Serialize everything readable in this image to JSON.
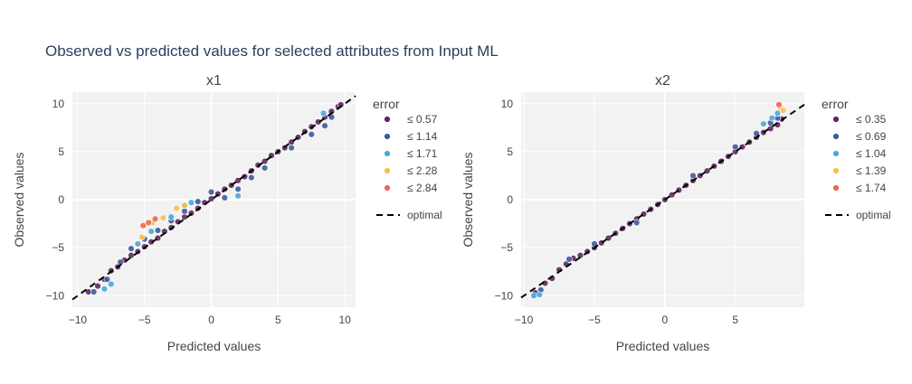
{
  "title": "Observed vs predicted values for selected attributes from Input ML",
  "colors": {
    "plot_bg": "#f2f2f2",
    "grid": "#ffffff",
    "text": "#444444",
    "title": "#2a3f5f",
    "point_outline": "#ffffff",
    "optimal_line": "#000000",
    "error_bins": [
      "#5c2a5c",
      "#3e5a9e",
      "#4aa9d8",
      "#f5c04a",
      "#f0654a"
    ]
  },
  "chart_data": [
    {
      "type": "scatter",
      "title": "x1",
      "xlabel": "Predicted values",
      "ylabel": "Observed values",
      "xlim": [
        -10.4,
        10.8
      ],
      "ylim": [
        -11.2,
        11.2
      ],
      "xticks": [
        -10,
        -5,
        0,
        5,
        10
      ],
      "yticks": [
        -10,
        -5,
        0,
        5,
        10
      ],
      "xtick_labels": [
        "−10",
        "−5",
        "0",
        "5",
        "10"
      ],
      "ytick_labels": [
        "−10",
        "−5",
        "0",
        "5",
        "10"
      ],
      "grid": true,
      "legend_title": "error",
      "legend_position": "right",
      "series": [
        {
          "name": "≤ 0.57",
          "color": "#5c2a5c",
          "points": [
            [
              -9.2,
              -9.6
            ],
            [
              -8.5,
              -9.0
            ],
            [
              -8.0,
              -8.3
            ],
            [
              -7.5,
              -7.4
            ],
            [
              -7.0,
              -7.0
            ],
            [
              -6.5,
              -6.3
            ],
            [
              -6.0,
              -5.8
            ],
            [
              -5.5,
              -5.4
            ],
            [
              -5.0,
              -4.9
            ],
            [
              -4.5,
              -4.4
            ],
            [
              -4.0,
              -4.0
            ],
            [
              -3.5,
              -3.3
            ],
            [
              -3.0,
              -2.9
            ],
            [
              -2.5,
              -2.3
            ],
            [
              -2.0,
              -1.8
            ],
            [
              -1.5,
              -1.4
            ],
            [
              -1.0,
              -0.9
            ],
            [
              -0.5,
              -0.3
            ],
            [
              0.0,
              0.1
            ],
            [
              0.5,
              0.6
            ],
            [
              1.0,
              1.1
            ],
            [
              1.5,
              1.5
            ],
            [
              2.0,
              2.0
            ],
            [
              2.5,
              2.4
            ],
            [
              3.0,
              3.0
            ],
            [
              3.5,
              3.6
            ],
            [
              4.0,
              4.0
            ],
            [
              4.5,
              4.6
            ],
            [
              5.0,
              5.0
            ],
            [
              5.5,
              5.4
            ],
            [
              6.0,
              6.0
            ],
            [
              6.5,
              6.5
            ],
            [
              7.0,
              7.1
            ],
            [
              7.5,
              7.6
            ],
            [
              8.0,
              8.1
            ],
            [
              8.5,
              8.6
            ],
            [
              9.0,
              9.2
            ],
            [
              9.5,
              9.7
            ],
            [
              9.7,
              9.9
            ]
          ]
        },
        {
          "name": "≤ 1.14",
          "color": "#3e5a9e",
          "points": [
            [
              -8.8,
              -9.6
            ],
            [
              -7.8,
              -8.3
            ],
            [
              -6.8,
              -6.5
            ],
            [
              -6.0,
              -5.1
            ],
            [
              -5.0,
              -4.1
            ],
            [
              -4.0,
              -3.2
            ],
            [
              -3.0,
              -2.2
            ],
            [
              -2.0,
              -1.2
            ],
            [
              -1.0,
              -0.2
            ],
            [
              0.0,
              0.8
            ],
            [
              1.0,
              0.2
            ],
            [
              2.0,
              1.1
            ],
            [
              3.0,
              2.3
            ],
            [
              4.0,
              3.3
            ],
            [
              6.0,
              5.4
            ],
            [
              7.5,
              6.8
            ],
            [
              8.5,
              7.7
            ],
            [
              9.0,
              8.6
            ]
          ]
        },
        {
          "name": "≤ 1.71",
          "color": "#4aa9d8",
          "points": [
            [
              -8.0,
              -9.3
            ],
            [
              -7.5,
              -8.8
            ],
            [
              -5.5,
              -4.6
            ],
            [
              -4.5,
              -3.3
            ],
            [
              -3.0,
              -1.8
            ],
            [
              -2.0,
              -0.6
            ],
            [
              -1.5,
              -0.3
            ],
            [
              2.0,
              0.4
            ],
            [
              8.4,
              9.0
            ]
          ]
        },
        {
          "name": "≤ 2.28",
          "color": "#f5c04a",
          "points": [
            [
              -5.2,
              -3.9
            ],
            [
              -4.4,
              -2.4
            ],
            [
              -3.6,
              -1.9
            ],
            [
              -2.6,
              -0.9
            ],
            [
              -2.0,
              -0.6
            ]
          ]
        },
        {
          "name": "≤ 2.84",
          "color": "#f0654a",
          "points": [
            [
              -5.1,
              -2.7
            ],
            [
              -4.7,
              -2.4
            ],
            [
              -4.2,
              -2.0
            ]
          ]
        }
      ],
      "optimal": {
        "name": "optimal",
        "x": [
          -10.4,
          10.8
        ],
        "y": [
          -10.4,
          10.8
        ]
      }
    },
    {
      "type": "scatter",
      "title": "x2",
      "xlabel": "Predicted values",
      "ylabel": "Observed values",
      "xlim": [
        -10.2,
        9.9
      ],
      "ylim": [
        -11.2,
        11.2
      ],
      "xticks": [
        -10,
        -5,
        0,
        5
      ],
      "yticks": [
        -10,
        -5,
        0,
        5,
        10
      ],
      "xtick_labels": [
        "−10",
        "−5",
        "0",
        "5"
      ],
      "ytick_labels": [
        "−10",
        "−5",
        "0",
        "5",
        "10"
      ],
      "grid": true,
      "legend_title": "error",
      "legend_position": "right",
      "series": [
        {
          "name": "≤ 0.35",
          "color": "#5c2a5c",
          "points": [
            [
              -9.2,
              -9.7
            ],
            [
              -8.5,
              -8.7
            ],
            [
              -8.0,
              -8.2
            ],
            [
              -7.5,
              -7.3
            ],
            [
              -7.0,
              -6.7
            ],
            [
              -6.5,
              -6.1
            ],
            [
              -6.0,
              -5.8
            ],
            [
              -5.5,
              -5.4
            ],
            [
              -5.0,
              -5.0
            ],
            [
              -4.5,
              -4.5
            ],
            [
              -4.0,
              -4.0
            ],
            [
              -3.5,
              -3.5
            ],
            [
              -3.0,
              -3.0
            ],
            [
              -2.5,
              -2.5
            ],
            [
              -2.0,
              -2.0
            ],
            [
              -1.5,
              -1.5
            ],
            [
              -1.0,
              -1.0
            ],
            [
              -0.5,
              -0.5
            ],
            [
              0.0,
              0.0
            ],
            [
              0.5,
              0.5
            ],
            [
              1.0,
              1.0
            ],
            [
              1.5,
              1.5
            ],
            [
              2.0,
              2.0
            ],
            [
              2.5,
              2.5
            ],
            [
              3.0,
              3.0
            ],
            [
              3.5,
              3.5
            ],
            [
              4.0,
              4.0
            ],
            [
              4.5,
              4.5
            ],
            [
              5.0,
              5.0
            ],
            [
              5.5,
              5.5
            ],
            [
              6.0,
              6.0
            ],
            [
              6.5,
              6.5
            ],
            [
              7.0,
              7.0
            ],
            [
              7.5,
              7.4
            ],
            [
              8.0,
              7.8
            ],
            [
              8.3,
              8.4
            ]
          ]
        },
        {
          "name": "≤ 0.69",
          "color": "#3e5a9e",
          "points": [
            [
              -8.8,
              -9.4
            ],
            [
              -6.8,
              -6.2
            ],
            [
              -5.0,
              -4.6
            ],
            [
              -2.0,
              -2.4
            ],
            [
              2.0,
              2.5
            ],
            [
              5.0,
              5.5
            ],
            [
              6.5,
              6.9
            ],
            [
              7.5,
              8.0
            ],
            [
              8.0,
              8.5
            ]
          ]
        },
        {
          "name": "≤ 1.04",
          "color": "#4aa9d8",
          "points": [
            [
              -9.3,
              -10.0
            ],
            [
              -8.9,
              -9.9
            ],
            [
              7.0,
              7.9
            ],
            [
              7.6,
              8.5
            ],
            [
              8.0,
              9.0
            ]
          ]
        },
        {
          "name": "≤ 1.39",
          "color": "#f5c04a",
          "points": [
            [
              8.2,
              9.6
            ],
            [
              8.4,
              9.3
            ]
          ]
        },
        {
          "name": "≤ 1.74",
          "color": "#f0654a",
          "points": [
            [
              8.1,
              9.9
            ]
          ]
        }
      ],
      "optimal": {
        "name": "optimal",
        "x": [
          -10.2,
          9.9
        ],
        "y": [
          -10.2,
          9.9
        ]
      }
    }
  ]
}
